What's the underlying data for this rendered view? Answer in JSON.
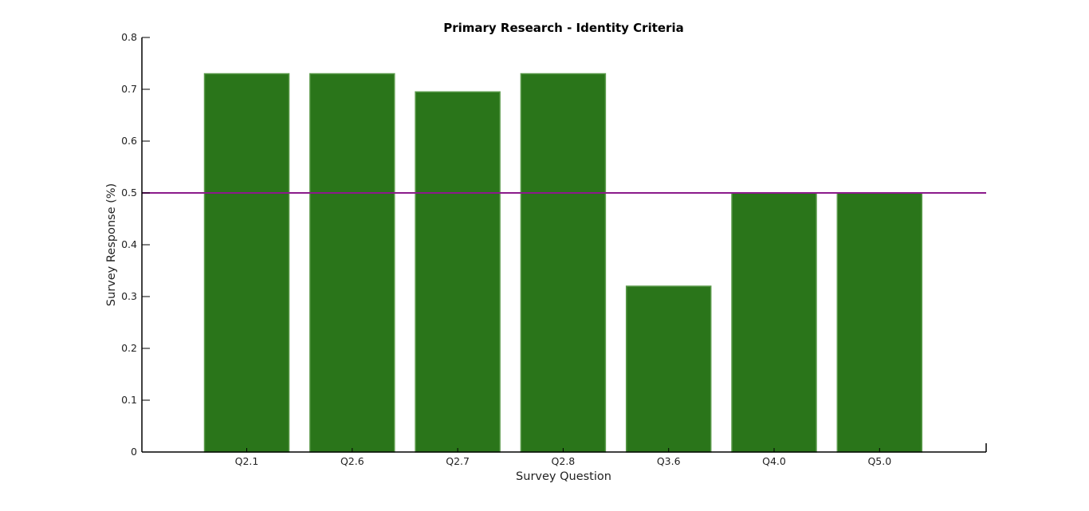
{
  "chart_data": {
    "type": "bar",
    "title": "Primary Research - Identity Criteria",
    "xlabel": "Survey Question",
    "ylabel": "Survey Response (%)",
    "categories": [
      "Q2.1",
      "Q2.6",
      "Q2.7",
      "Q2.8",
      "Q3.6",
      "Q4.0",
      "Q5.0"
    ],
    "values": [
      0.73,
      0.73,
      0.695,
      0.73,
      0.32,
      0.5,
      0.5
    ],
    "ylim": [
      0,
      0.8
    ],
    "yticks": [
      0,
      0.1,
      0.2,
      0.3,
      0.4,
      0.5,
      0.6,
      0.7,
      0.8
    ],
    "ytick_labels": [
      "0",
      "0.1",
      "0.2",
      "0.3",
      "0.4",
      "0.5",
      "0.6",
      "0.7",
      "0.8"
    ],
    "reference_line": {
      "y": 0.5,
      "color": "#8b1a8b"
    },
    "bar_color": "#2a751a",
    "bar_edge_color": "#5a9a4a",
    "grid": false,
    "legend": "none"
  }
}
